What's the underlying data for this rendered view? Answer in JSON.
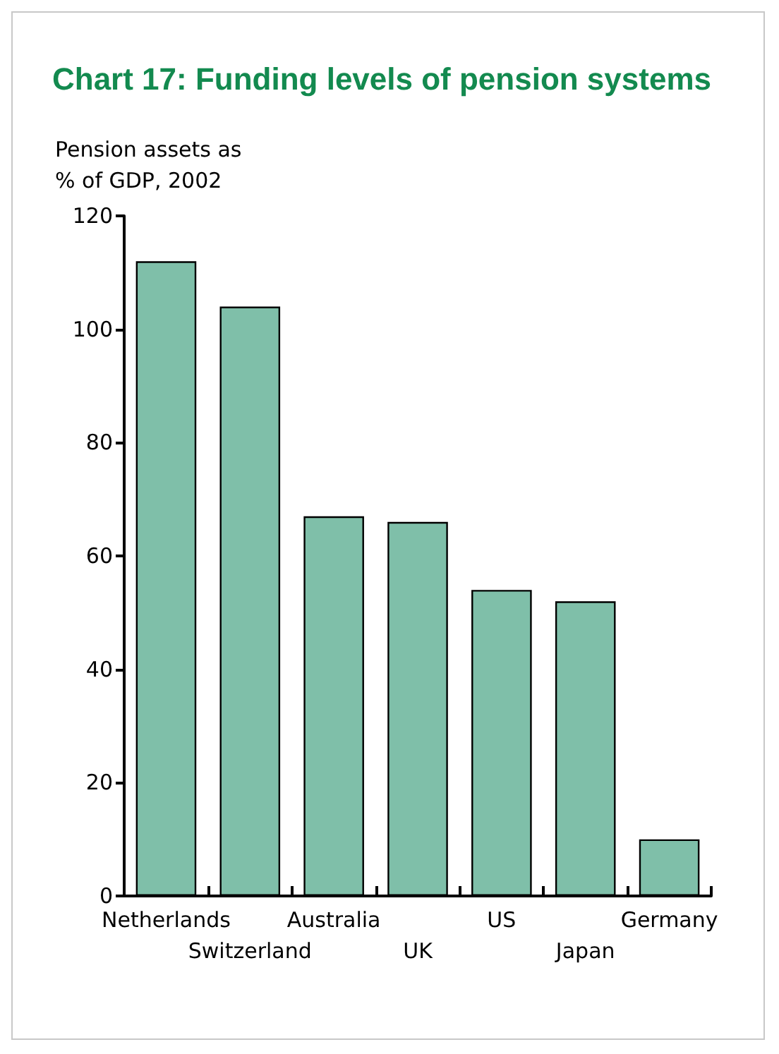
{
  "chart_data": {
    "type": "bar",
    "title": "Chart 17: Funding levels of pension systems",
    "ylabel": "Pension assets as % of GDP, 2002",
    "categories": [
      "Netherlands",
      "Switzerland",
      "Australia",
      "UK",
      "US",
      "Japan",
      "Germany"
    ],
    "values": [
      112,
      104,
      67,
      66,
      54,
      52,
      10
    ],
    "color": "#7fbfa9",
    "ylim": [
      0,
      120
    ],
    "yticks": [
      0,
      20,
      40,
      60,
      80,
      100,
      120
    ],
    "grid": false,
    "legend": false
  }
}
